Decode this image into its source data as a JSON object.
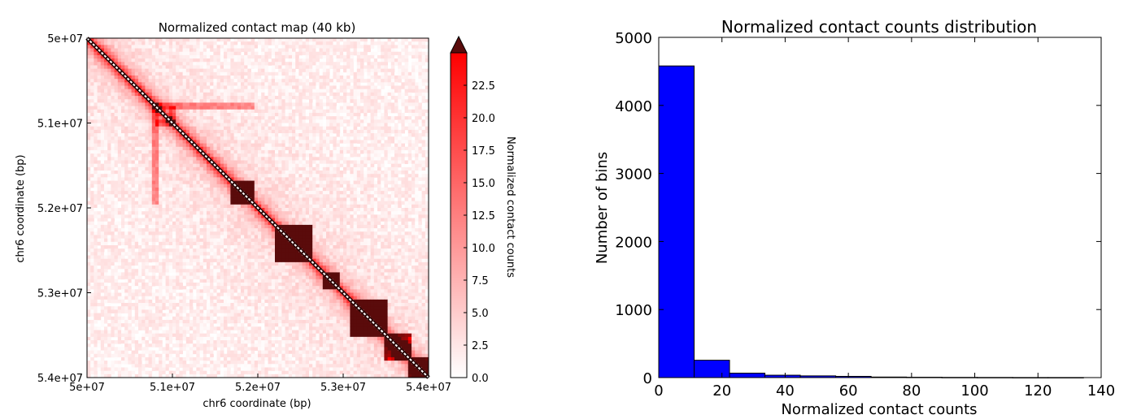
{
  "chart_data": [
    {
      "type": "heatmap",
      "title": "Normalized contact map (40 kb)",
      "xlabel": "chr6 coordinate (bp)",
      "ylabel": "chr6 coordinate (bp)",
      "xlim": [
        50000000,
        54000000
      ],
      "ylim": [
        50000000,
        54000000
      ],
      "x_ticks": [
        "5e+07",
        "5.1e+07",
        "5.2e+07",
        "5.3e+07",
        "5.4e+07"
      ],
      "y_ticks": [
        "5e+07",
        "5.1e+07",
        "5.2e+07",
        "5.3e+07",
        "5.4e+07"
      ],
      "bin_size_kb": 40,
      "colorbar": {
        "label": "Normalized contact counts",
        "range": [
          0,
          25
        ],
        "ticks": [
          "0.0",
          "2.5",
          "5.0",
          "7.5",
          "10.0",
          "12.5",
          "15.0",
          "17.5",
          "20.0",
          "22.5"
        ],
        "extend": "max",
        "colors": [
          "#ffffff",
          "#ff0000",
          "#5a0c0c"
        ]
      },
      "domains": [
        {
          "start": 51700000,
          "end": 51950000,
          "strength": 0.95
        },
        {
          "start": 52200000,
          "end": 52650000,
          "strength": 1.0
        },
        {
          "start": 52750000,
          "end": 52950000,
          "strength": 0.8
        },
        {
          "start": 53100000,
          "end": 53500000,
          "strength": 1.0
        },
        {
          "start": 53500000,
          "end": 53800000,
          "strength": 0.85
        },
        {
          "start": 53750000,
          "end": 54000000,
          "strength": 0.9
        }
      ],
      "stripes": [
        {
          "position": 50800000,
          "from": 50800000,
          "to": 51950000,
          "strength": 0.35
        },
        {
          "position": 51000000,
          "from": 50800000,
          "to": 51000000,
          "strength": 0.3
        }
      ]
    },
    {
      "type": "bar",
      "title": "Normalized contact counts distribution",
      "xlabel": "Normalized contact counts",
      "ylabel": "Number of bins",
      "xlim": [
        0,
        140
      ],
      "ylim": [
        0,
        5000
      ],
      "x_ticks": [
        "0",
        "20",
        "40",
        "60",
        "80",
        "100",
        "120",
        "140"
      ],
      "y_ticks": [
        "0",
        "1000",
        "2000",
        "3000",
        "4000",
        "5000"
      ],
      "bin_edges": [
        0,
        11.2,
        22.4,
        33.6,
        44.8,
        56.0,
        67.2,
        78.4,
        89.6,
        100.8,
        112.0,
        123.2,
        134.4
      ],
      "values": [
        4580,
        255,
        65,
        35,
        25,
        18,
        8,
        5,
        3,
        2,
        1,
        1
      ],
      "bar_color": "#0000ff"
    }
  ]
}
